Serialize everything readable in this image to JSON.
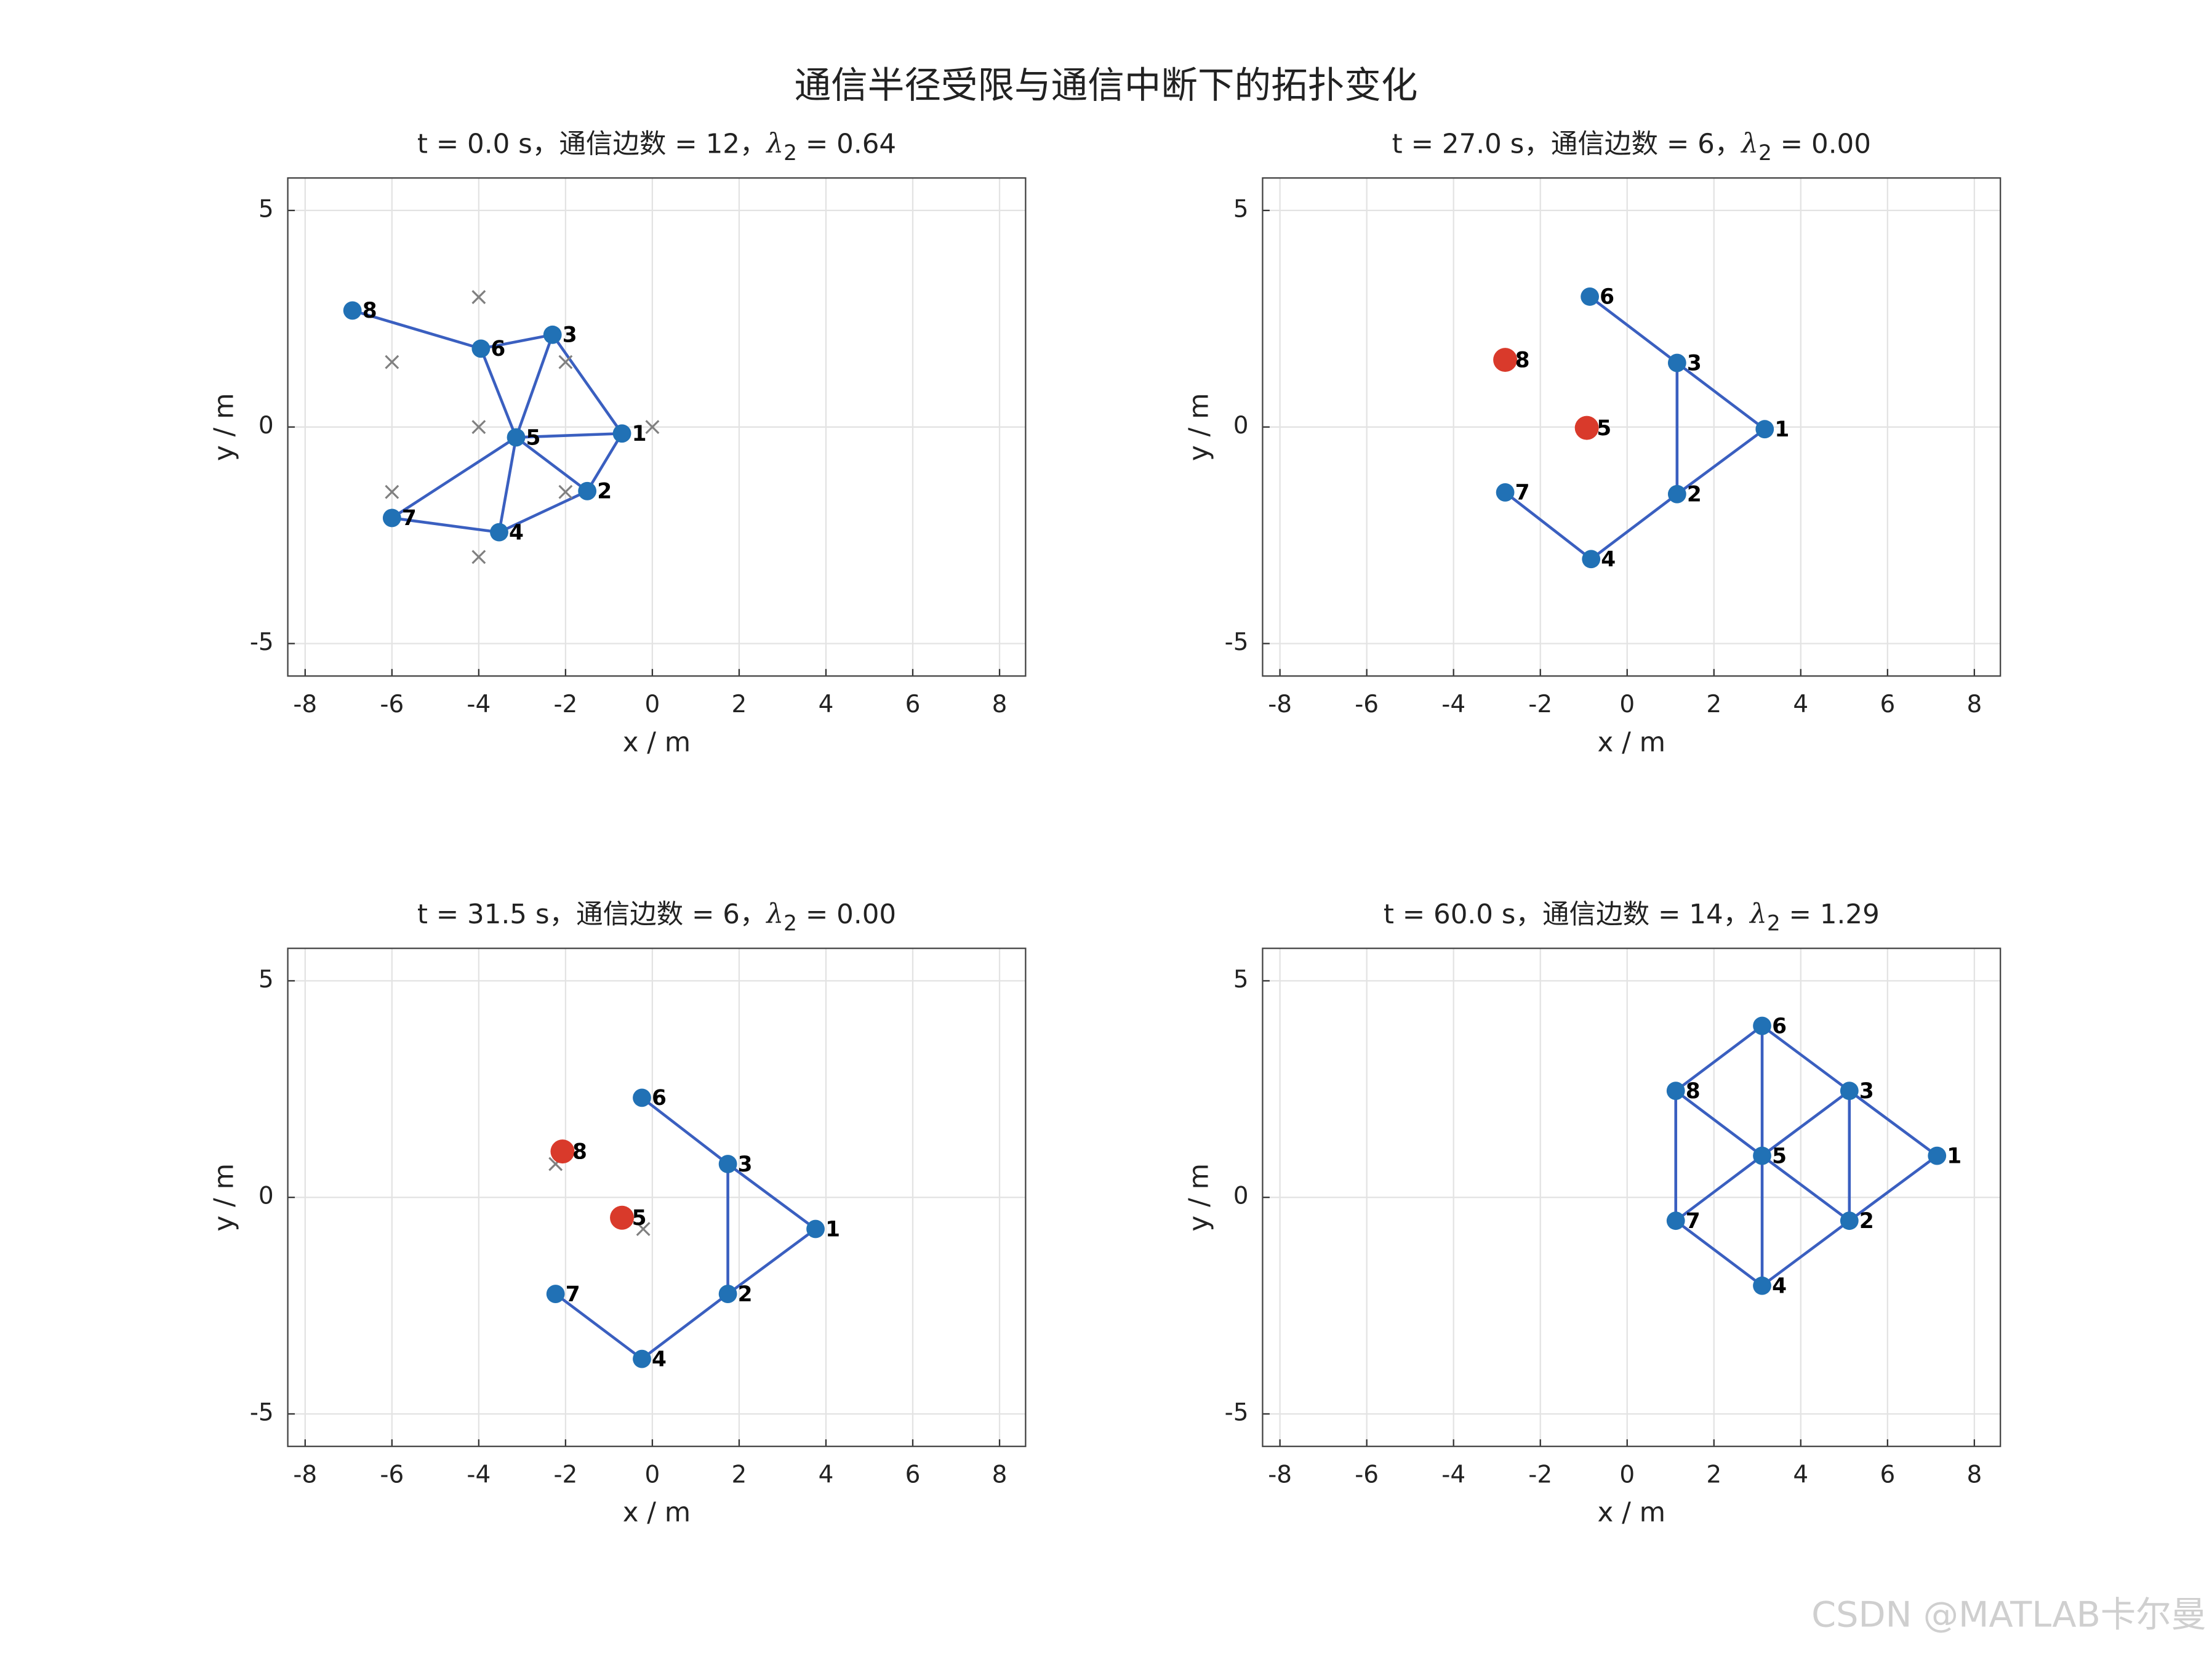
{
  "title": "通信半径受限与通信中断下的拓扑变化",
  "watermark": "CSDN @MATLAB卡尔曼",
  "chart_data": [
    {
      "type": "network",
      "title": {
        "prefix": "t = 0.0 s，通信边数 = 12，",
        "symbol": "λ",
        "subscript": "2",
        "suffix": " = 0.64"
      },
      "xlabel": "x / m",
      "ylabel": "y / m",
      "xlim": [
        -8.4,
        8.6
      ],
      "ylim": [
        -5.75,
        5.75
      ],
      "xticks": [
        -8,
        -6,
        -4,
        -2,
        0,
        2,
        4,
        6,
        8
      ],
      "yticks": [
        -5,
        0,
        5
      ],
      "grid": true,
      "edge_color": "#3a5fc0",
      "nodes": {
        "labels": [
          "1",
          "2",
          "3",
          "4",
          "5",
          "6",
          "7",
          "8"
        ],
        "x": [
          -0.7,
          -1.5,
          -2.3,
          -3.53,
          -3.14,
          -3.95,
          -6.0,
          -6.91
        ],
        "y": [
          -0.15,
          -1.48,
          2.13,
          -2.43,
          -0.24,
          1.81,
          -2.1,
          2.69
        ],
        "colors": [
          "#2171b5",
          "#2171b5",
          "#2171b5",
          "#2171b5",
          "#2171b5",
          "#2171b5",
          "#2171b5",
          "#2171b5"
        ]
      },
      "edges": [
        [
          7,
          5
        ],
        [
          5,
          2
        ],
        [
          5,
          4
        ],
        [
          2,
          4
        ],
        [
          2,
          0
        ],
        [
          4,
          0
        ],
        [
          4,
          1
        ],
        [
          0,
          1
        ],
        [
          4,
          6
        ],
        [
          4,
          3
        ],
        [
          6,
          3
        ],
        [
          3,
          1
        ]
      ],
      "targets": {
        "color": "#808080",
        "x": [
          0,
          -2,
          -4,
          -6,
          -4,
          -6,
          -2,
          -4
        ],
        "y": [
          0,
          1.5,
          3,
          1.5,
          0,
          -1.5,
          -1.5,
          -3
        ]
      }
    },
    {
      "type": "network",
      "title": {
        "prefix": "t = 27.0 s，通信边数 = 6，",
        "symbol": "λ",
        "subscript": "2",
        "suffix": " = 0.00"
      },
      "xlabel": "x / m",
      "ylabel": "y / m",
      "xlim": [
        -8.4,
        8.6
      ],
      "ylim": [
        -5.75,
        5.75
      ],
      "xticks": [
        -8,
        -6,
        -4,
        -2,
        0,
        2,
        4,
        6,
        8
      ],
      "yticks": [
        -5,
        0,
        5
      ],
      "grid": true,
      "edge_color": "#3a5fc0",
      "nodes": {
        "labels": [
          "1",
          "2",
          "3",
          "4",
          "5",
          "6",
          "7",
          "8"
        ],
        "x": [
          3.17,
          1.15,
          1.15,
          -0.83,
          -0.93,
          -0.86,
          -2.81,
          -2.81
        ],
        "y": [
          -0.05,
          -1.55,
          1.48,
          -3.05,
          -0.02,
          3.01,
          -1.51,
          1.55
        ],
        "colors": [
          "#2171b5",
          "#2171b5",
          "#2171b5",
          "#2171b5",
          "#d93a2b",
          "#2171b5",
          "#2171b5",
          "#d93a2b"
        ]
      },
      "edges": [
        [
          5,
          2
        ],
        [
          2,
          0
        ],
        [
          2,
          1
        ],
        [
          0,
          1
        ],
        [
          1,
          3
        ],
        [
          3,
          6
        ]
      ]
    },
    {
      "type": "network",
      "title": {
        "prefix": "t = 31.5 s，通信边数 = 6，",
        "symbol": "λ",
        "subscript": "2",
        "suffix": " = 0.00"
      },
      "xlabel": "x / m",
      "ylabel": "y / m",
      "xlim": [
        -8.4,
        8.6
      ],
      "ylim": [
        -5.75,
        5.75
      ],
      "xticks": [
        -8,
        -6,
        -4,
        -2,
        0,
        2,
        4,
        6,
        8
      ],
      "yticks": [
        -5,
        0,
        5
      ],
      "grid": true,
      "edge_color": "#3a5fc0",
      "nodes": {
        "labels": [
          "1",
          "2",
          "3",
          "4",
          "5",
          "6",
          "7",
          "8"
        ],
        "x": [
          3.76,
          1.74,
          1.74,
          -0.24,
          -0.7,
          -0.24,
          -2.23,
          -2.07
        ],
        "y": [
          -0.73,
          -2.23,
          0.77,
          -3.73,
          -0.47,
          2.3,
          -2.23,
          1.06
        ],
        "colors": [
          "#2171b5",
          "#2171b5",
          "#2171b5",
          "#2171b5",
          "#d93a2b",
          "#2171b5",
          "#2171b5",
          "#d93a2b"
        ]
      },
      "edges": [
        [
          5,
          2
        ],
        [
          2,
          0
        ],
        [
          2,
          1
        ],
        [
          0,
          1
        ],
        [
          1,
          3
        ],
        [
          3,
          6
        ]
      ],
      "targets": {
        "color": "#808080",
        "x": [
          -2.23,
          -0.21
        ],
        "y": [
          0.77,
          -0.73
        ]
      }
    },
    {
      "type": "network",
      "title": {
        "prefix": "t = 60.0 s，通信边数 = 14，",
        "symbol": "λ",
        "subscript": "2",
        "suffix": " = 1.29"
      },
      "xlabel": "x / m",
      "ylabel": "y / m",
      "xlim": [
        -8.4,
        8.6
      ],
      "ylim": [
        -5.75,
        5.75
      ],
      "xticks": [
        -8,
        -6,
        -4,
        -2,
        0,
        2,
        4,
        6,
        8
      ],
      "yticks": [
        -5,
        0,
        5
      ],
      "grid": true,
      "edge_color": "#3a5fc0",
      "nodes": {
        "labels": [
          "1",
          "2",
          "3",
          "4",
          "5",
          "6",
          "7",
          "8"
        ],
        "x": [
          7.14,
          5.12,
          5.12,
          3.11,
          3.11,
          3.11,
          1.12,
          1.12
        ],
        "y": [
          0.96,
          -0.54,
          2.46,
          -2.04,
          0.96,
          3.96,
          -0.54,
          2.46
        ],
        "colors": [
          "#2171b5",
          "#2171b5",
          "#2171b5",
          "#2171b5",
          "#2171b5",
          "#2171b5",
          "#2171b5",
          "#2171b5"
        ]
      },
      "edges": [
        [
          5,
          2
        ],
        [
          5,
          7
        ],
        [
          5,
          4
        ],
        [
          2,
          4
        ],
        [
          2,
          0
        ],
        [
          2,
          1
        ],
        [
          0,
          1
        ],
        [
          4,
          1
        ],
        [
          4,
          7
        ],
        [
          4,
          6
        ],
        [
          4,
          3
        ],
        [
          7,
          6
        ],
        [
          6,
          3
        ],
        [
          3,
          1
        ]
      ]
    }
  ]
}
